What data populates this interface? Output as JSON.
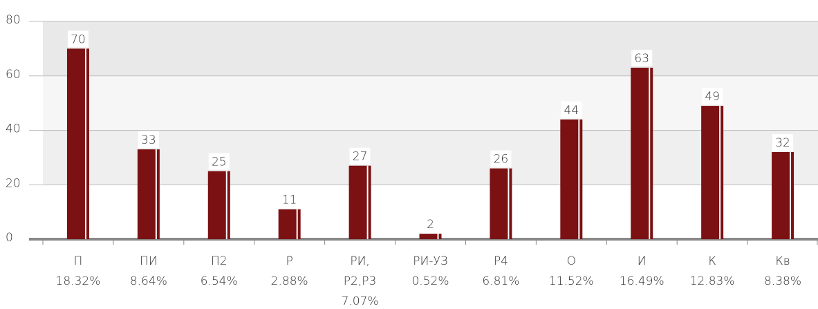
{
  "chart_data": {
    "type": "bar",
    "categories": [
      "П",
      "ПИ",
      "П2",
      "Р",
      "РИ, Р2,Р3",
      "РИ-УЗ",
      "Р4",
      "О",
      "И",
      "К",
      "Кв"
    ],
    "shares": [
      "18.32%",
      "8.64%",
      "6.54%",
      "2.88%",
      "7.07%",
      "0.52%",
      "6.81%",
      "11.52%",
      "16.49%",
      "12.83%",
      "8.38%"
    ],
    "values": [
      70,
      33,
      25,
      11,
      27,
      2,
      26,
      44,
      63,
      49,
      32
    ],
    "color": "#7b1113",
    "ylim": [
      0,
      80
    ],
    "yticks": [
      0,
      20,
      40,
      60,
      80
    ],
    "grid": true
  }
}
